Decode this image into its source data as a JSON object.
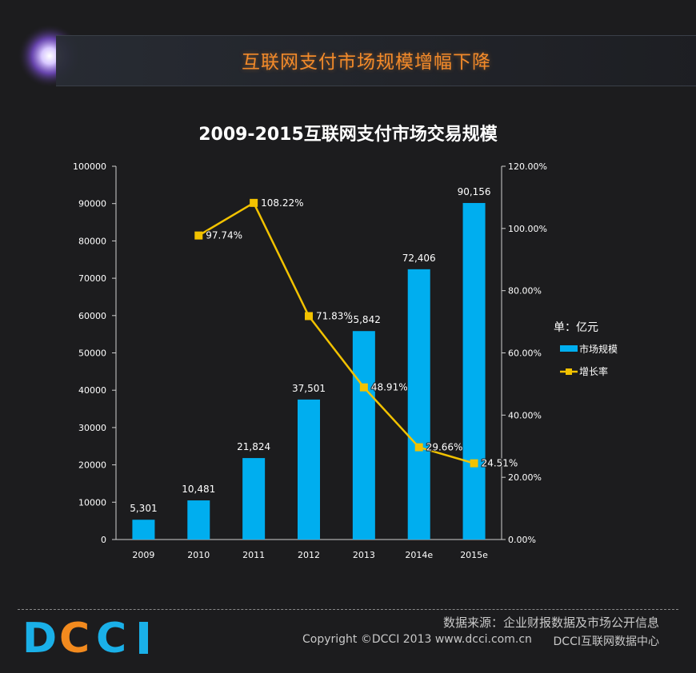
{
  "header": {
    "title": "互联网支付市场规模增幅下降"
  },
  "chart_data": {
    "type": "bar",
    "title": "2009-2015互联网支付市场交易规模",
    "categories": [
      "2009",
      "2010",
      "2011",
      "2012",
      "2013",
      "2014e",
      "2015e"
    ],
    "series": [
      {
        "name": "市场规模",
        "type": "bar",
        "axis": "left",
        "color": "#00aeef",
        "values": [
          5301,
          10481,
          21824,
          37501,
          55842,
          72406,
          90156
        ],
        "labels": [
          "5,301",
          "10,481",
          "21,824",
          "37,501",
          "55,842",
          "72,406",
          "90,156"
        ]
      },
      {
        "name": "增长率",
        "type": "line",
        "axis": "right",
        "color": "#f2c200",
        "values": [
          null,
          97.74,
          108.22,
          71.83,
          48.91,
          29.66,
          24.51
        ],
        "labels": [
          "",
          "97.74%",
          "108.22%",
          "71.83%",
          "48.91%",
          "29.66%",
          "24.51%"
        ]
      }
    ],
    "y_left": {
      "min": 0,
      "max": 100000,
      "ticks": [
        "0",
        "10000",
        "20000",
        "30000",
        "40000",
        "50000",
        "60000",
        "70000",
        "80000",
        "90000",
        "100000"
      ]
    },
    "y_right": {
      "min": 0,
      "max": 120,
      "ticks": [
        "0.00%",
        "20.00%",
        "40.00%",
        "60.00%",
        "80.00%",
        "100.00%",
        "120.00%"
      ]
    },
    "unit_label": "单：亿元",
    "legend_position": "right",
    "grid": false
  },
  "footer": {
    "logo_text": "DCCI",
    "source": "数据来源：企业财报数据及市场公开信息",
    "copyright": "Copyright ©DCCI 2013 www.dcci.com.cn",
    "org": "DCCI互联网数据中心"
  },
  "colors": {
    "bar": "#00aeef",
    "line": "#f2c200",
    "title_accent": "#f28a2a",
    "background": "#1c1c1e"
  }
}
